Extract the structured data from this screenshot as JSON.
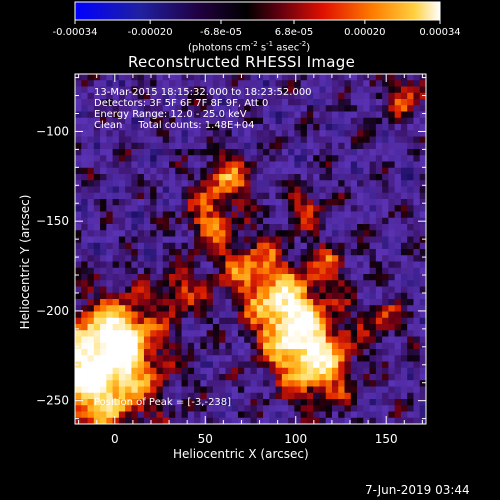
{
  "colorbar": {
    "ticks": [
      "-0.00034",
      "-0.00020",
      "-6.8e-05",
      "6.8e-05",
      "0.00020",
      "0.00034"
    ],
    "tick_values": [
      -0.00034,
      -0.0002,
      -6.8e-05,
      6.8e-05,
      0.0002,
      0.00034
    ],
    "units_main": "(photons cm",
    "units_exp1": "-2",
    "units_mid": " s",
    "units_exp2": "-1",
    "units_mid2": " asec",
    "units_exp3": "-2",
    "units_end": ")"
  },
  "chart_data": {
    "type": "heatmap",
    "title": "Reconstructed RHESSI Image",
    "xlabel": "Heliocentric X (arcsec)",
    "ylabel": "Heliocentric Y (arcsec)",
    "xlim": [
      -22,
      172
    ],
    "ylim": [
      -263,
      -68
    ],
    "xticks": [
      0,
      50,
      100,
      150
    ],
    "yticks": [
      -100,
      -150,
      -200,
      -250
    ],
    "colormap": "rhessi-blue-black-red-white",
    "annotations": {
      "time_range": "13-Mar-2015 18:15:32.000 to 18:23:52.000",
      "detectors": "Detectors: 3F 5F 6F 7F 8F 9F, Att 0",
      "energy": "Energy Range: 12.0 - 25.0 keV",
      "clean": "Clean     Total counts: 1.48E+04",
      "peak": "Position of Peak = [-3,-238]"
    }
  },
  "footer": {
    "date": "7-Jun-2019 03:44"
  }
}
